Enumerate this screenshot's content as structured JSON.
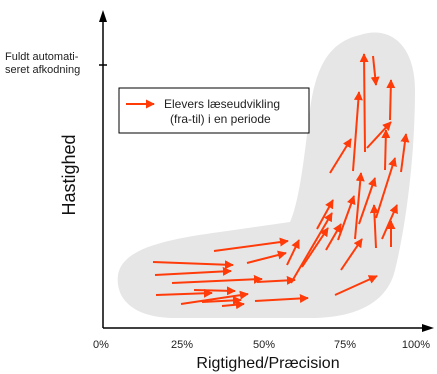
{
  "diagram": {
    "y_axis_title": "Hastighed",
    "x_axis_title": "Rigtighed/Præcision",
    "y_top_label_line1": "Fuldt automati-",
    "y_top_label_line2": "seret afkodning",
    "x_tick_labels": [
      "0%",
      "25%",
      "50%",
      "75%",
      "100%"
    ],
    "legend_line1": "Elevers læseudvikling",
    "legend_line2": "(fra-til) i en periode",
    "colors": {
      "arrow": "#ff3b0a",
      "region": "#e6e6e6",
      "axis": "#000000",
      "legend_border": "#000000"
    }
  }
}
